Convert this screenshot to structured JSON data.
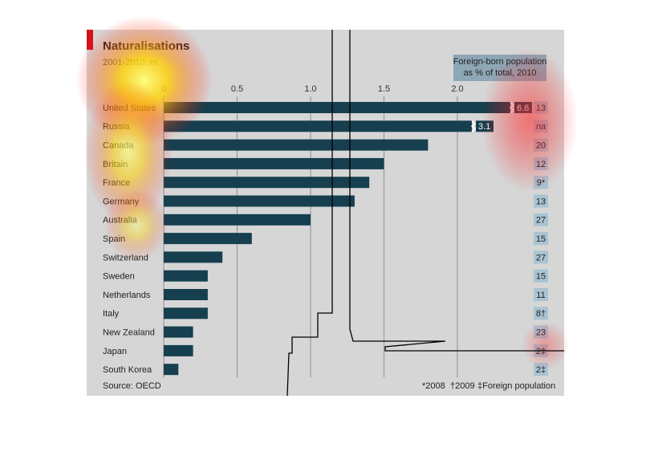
{
  "chart_data": {
    "type": "bar",
    "orientation": "horizontal",
    "title": "Naturalisations",
    "subtitle": "2001-2010, m",
    "categories": [
      "United States",
      "Russia",
      "Canada",
      "Britain",
      "France",
      "Germany",
      "Australia",
      "Spain",
      "Switzerland",
      "Sweden",
      "Netherlands",
      "Italy",
      "New Zealand",
      "Japan",
      "South Korea"
    ],
    "values": [
      6.6,
      3.1,
      1.8,
      1.5,
      1.4,
      1.3,
      1.0,
      0.6,
      0.4,
      0.3,
      0.3,
      0.3,
      0.2,
      0.2,
      0.1
    ],
    "value_labels": [
      "6.6",
      "3.1",
      null,
      null,
      null,
      null,
      null,
      null,
      null,
      null,
      null,
      null,
      null,
      null,
      null
    ],
    "color": "#163f4f",
    "xlim": [
      0,
      2.5
    ],
    "xticks": [
      0,
      0.5,
      {
        "value": 1.0,
        "label": "1.0"
      },
      1.5,
      {
        "value": 2.0,
        "label": "2.0"
      }
    ],
    "grid": true,
    "side_column_title": [
      "Foreign-born population",
      "as % of total, 2010"
    ],
    "side_column": [
      "13",
      "na",
      "20",
      "12",
      "9*",
      "13",
      "27",
      "15",
      "27",
      "15",
      "11",
      "8†",
      "23",
      "2‡",
      "2‡"
    ],
    "source": "Source: OECD",
    "footnotes": [
      "*2008",
      "†2009",
      "‡Foreign population"
    ]
  }
}
